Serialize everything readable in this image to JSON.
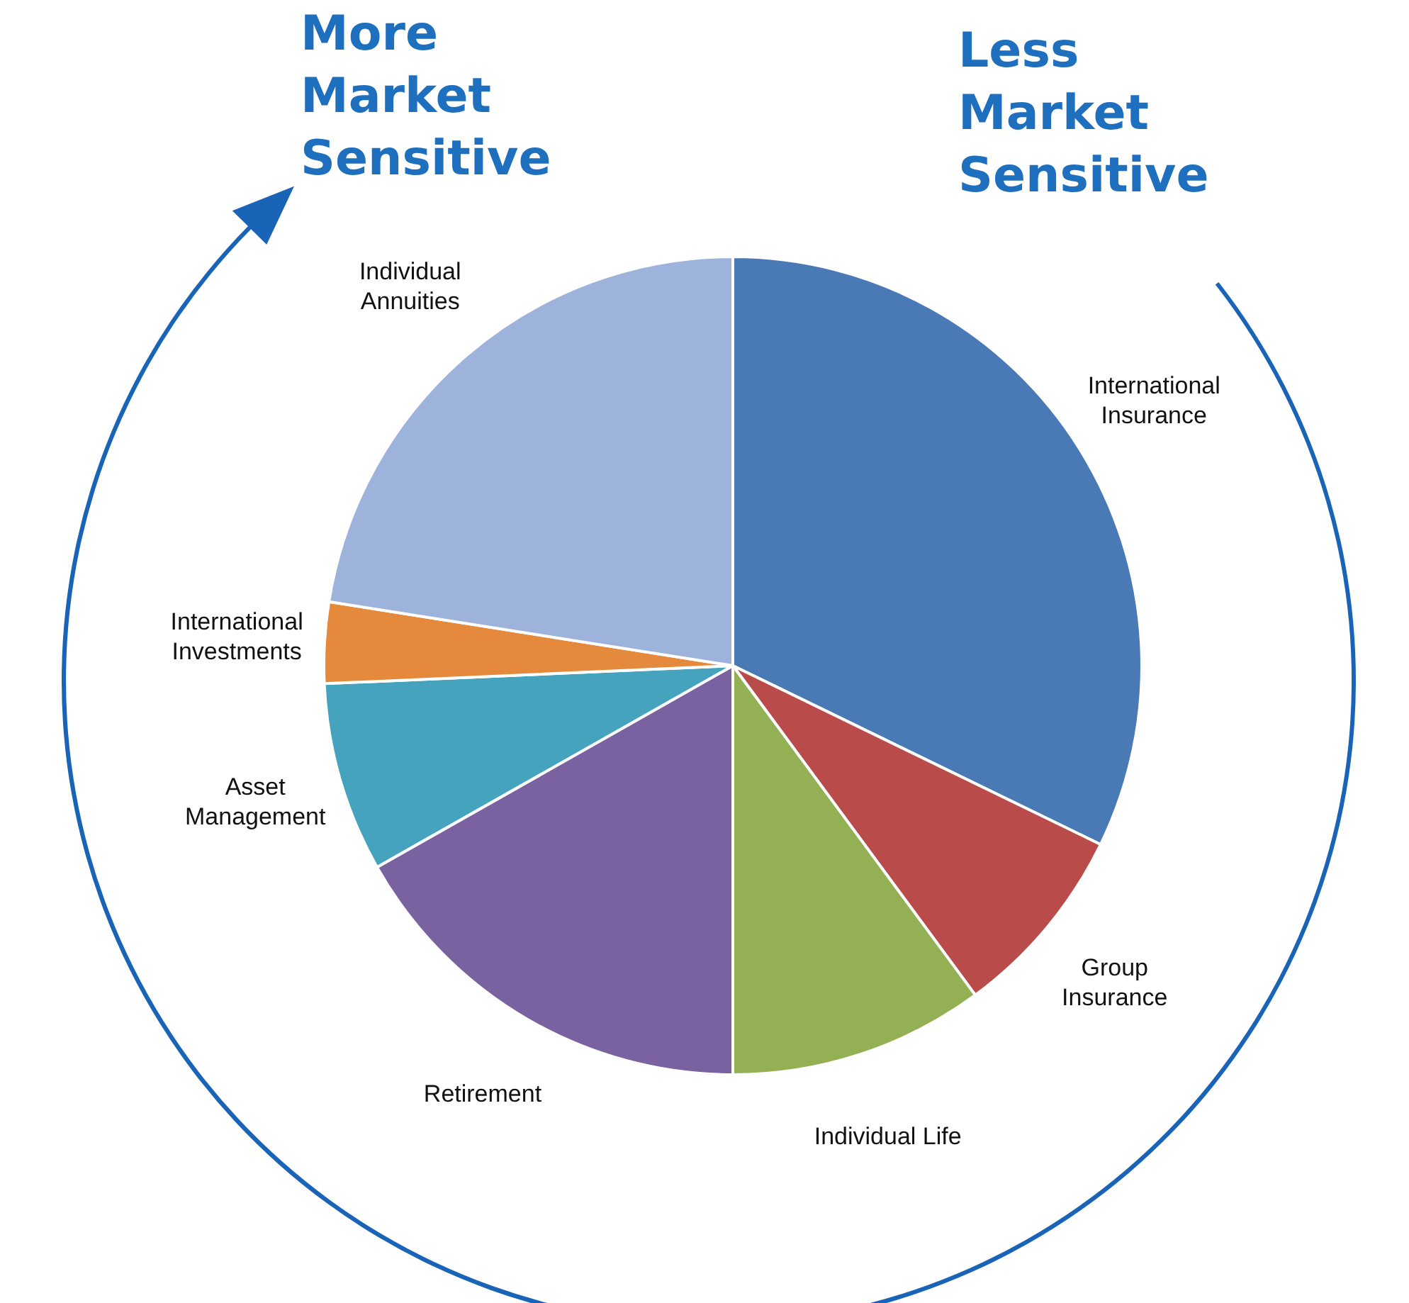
{
  "chart_data": {
    "type": "pie",
    "categories": [
      "International Insurance",
      "Group Insurance",
      "Individual Life",
      "Retirement",
      "Asset Management",
      "International Investments",
      "Individual Annuities"
    ],
    "values": [
      32.2,
      7.7,
      10.1,
      16.8,
      7.5,
      3.2,
      22.5
    ],
    "colors": [
      "#4a7ab5",
      "#b94c4a",
      "#93b055",
      "#7a62a0",
      "#45a3bd",
      "#e5893c",
      "#9db3db"
    ],
    "annotations": [
      "More Market Sensitive",
      "Less Market Sensitive"
    ],
    "legend": false
  }
}
